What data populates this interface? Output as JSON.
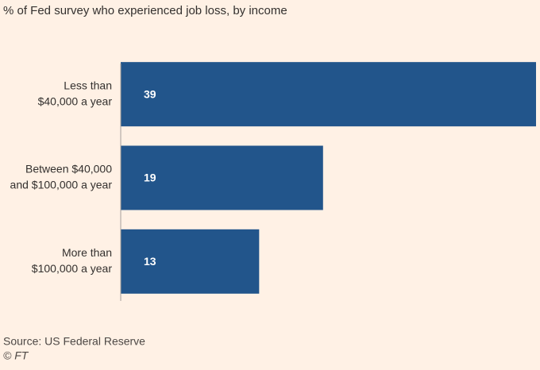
{
  "chart_data": {
    "type": "barh",
    "title": "% of Fed survey who experienced job loss, by income",
    "categories": [
      [
        "Less than",
        "$40,000 a year"
      ],
      [
        "Between $40,000",
        "and $100,000 a year"
      ],
      [
        "More than",
        "$100,000 a year"
      ]
    ],
    "values": [
      39,
      19,
      13
    ],
    "color": "#22558b",
    "xlim": [
      0,
      39
    ],
    "source": "Source: US Federal Reserve",
    "credit": "© FT"
  }
}
